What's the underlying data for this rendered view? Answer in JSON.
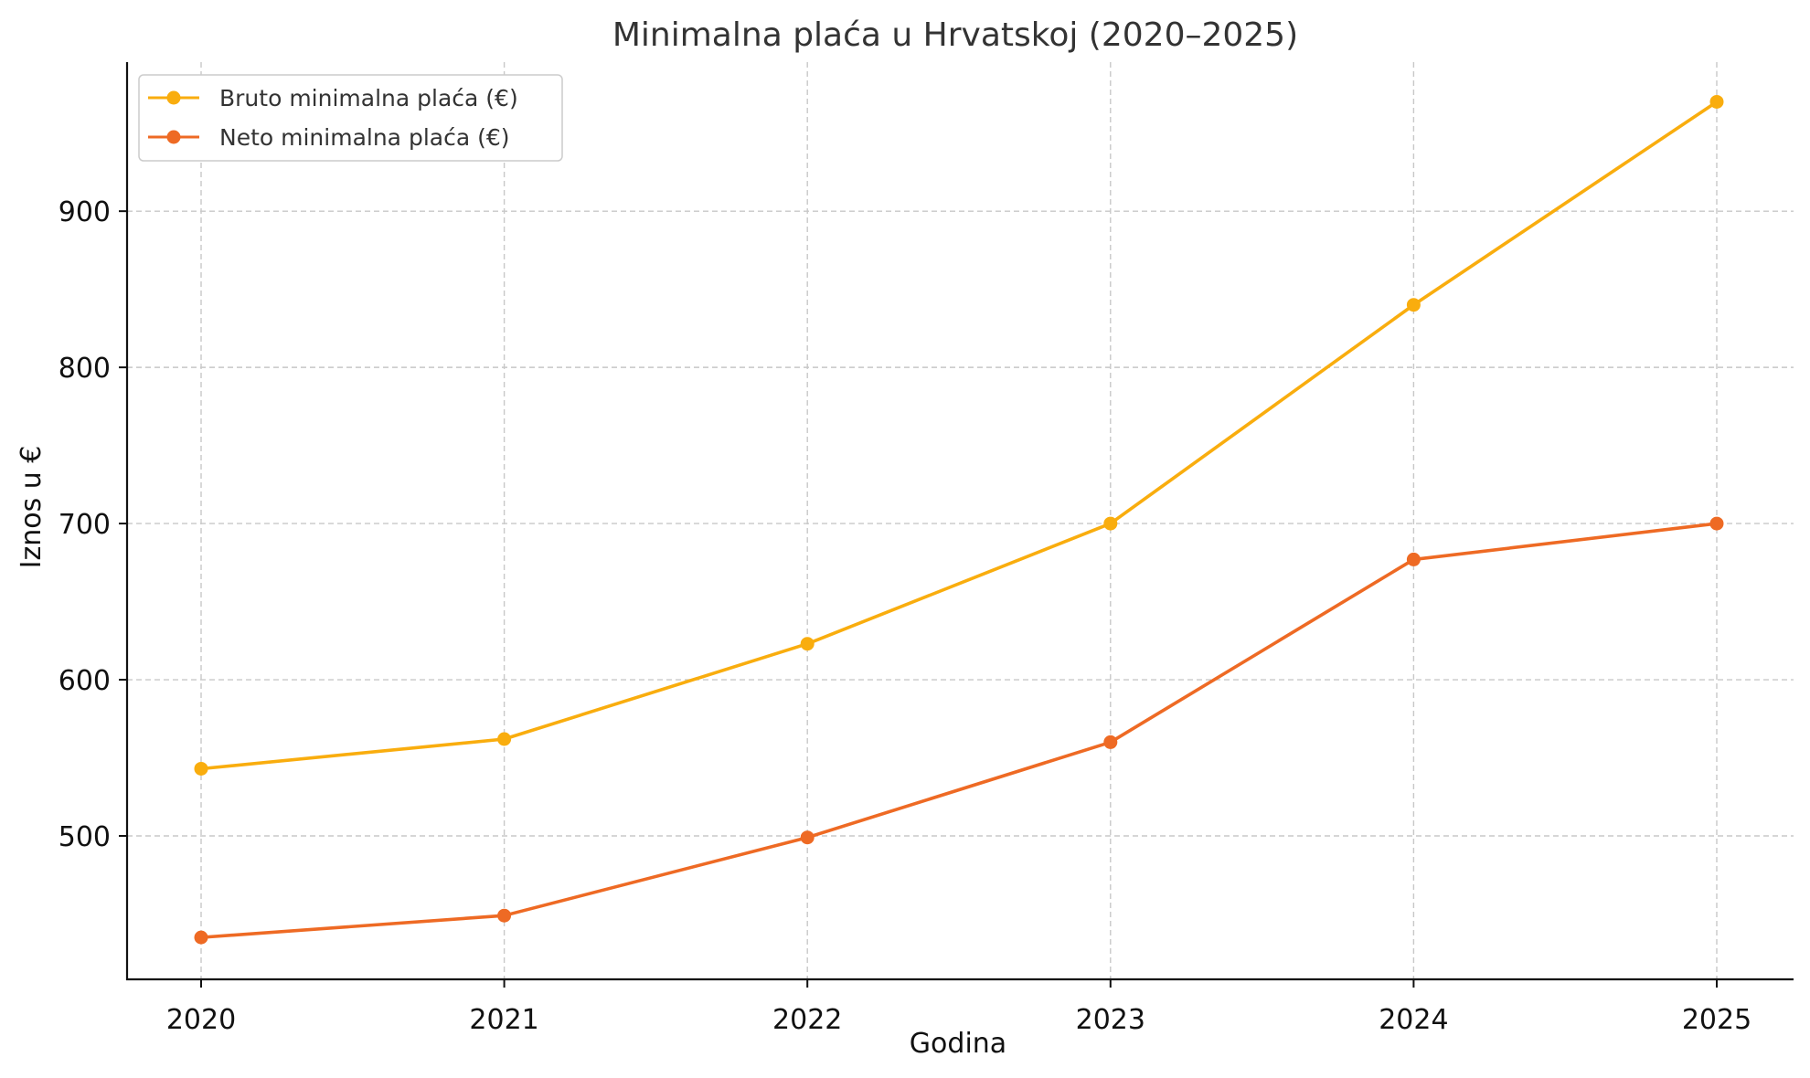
{
  "chart_data": {
    "type": "line",
    "title": "Minimalna plaća u Hrvatskoj (2020–2025)",
    "xlabel": "Godina",
    "ylabel": "Iznos u €",
    "categories": [
      "2020",
      "2021",
      "2022",
      "2023",
      "2024",
      "2025"
    ],
    "y_ticks": [
      500,
      600,
      700,
      800,
      900
    ],
    "ylim": [
      410,
      997
    ],
    "grid": true,
    "legend_position": "top-left",
    "series": [
      {
        "name": "Bruto minimalna plaća (€)",
        "color": "#F9AD0E",
        "values": [
          543,
          562,
          623,
          700,
          840,
          970
        ]
      },
      {
        "name": "Neto minimalna plaća (€)",
        "color": "#EE6A24",
        "values": [
          435,
          449,
          499,
          560,
          677,
          700
        ]
      }
    ]
  }
}
